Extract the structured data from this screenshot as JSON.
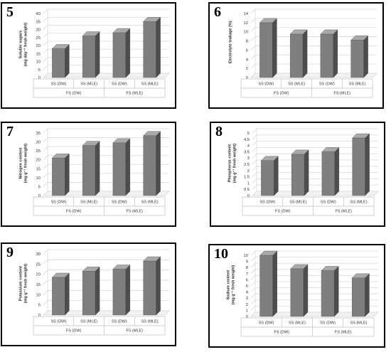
{
  "chart_data": [
    {
      "panel": "5",
      "type": "bar",
      "ylabel_lines": [
        "Soluble sugars",
        "(mg day⁻¹ fresh weight)"
      ],
      "yticks": [
        0,
        5,
        10,
        15,
        20,
        25,
        30,
        35,
        40
      ],
      "ylim": [
        0,
        40
      ],
      "categories": [
        "SS (DW)",
        "SS (MLE)",
        "SS (DW)",
        "SS (MLE)"
      ],
      "groups": [
        "FS (DW)",
        "FS (MLE)"
      ],
      "values": [
        18,
        26,
        28,
        35
      ]
    },
    {
      "panel": "6",
      "type": "bar",
      "ylabel_lines": [
        "Electrolyte leakage (%)"
      ],
      "yticks": [
        0,
        2,
        4,
        6,
        8,
        10,
        12,
        14
      ],
      "ylim": [
        0,
        14
      ],
      "categories": [
        "SS (DW)",
        "SS (MLE)",
        "SS (DW)",
        "SS (MLE)"
      ],
      "groups": [
        "FS (DW)",
        "FS (MLE)"
      ],
      "values": [
        12,
        9.5,
        9.5,
        8.2
      ]
    },
    {
      "panel": "7",
      "type": "bar",
      "ylabel_lines": [
        "Nitrogen content",
        "(mg g⁻¹ fresh weight)"
      ],
      "yticks": [
        0,
        5,
        10,
        15,
        20,
        25,
        30,
        35
      ],
      "ylim": [
        0,
        35
      ],
      "categories": [
        "SS (DW)",
        "SS (MLE)",
        "SS (DW)",
        "SS (MLE)"
      ],
      "groups": [
        "FS (DW)",
        "FS (MLE)"
      ],
      "values": [
        21,
        28,
        29.5,
        33.5
      ]
    },
    {
      "panel": "8",
      "type": "bar",
      "ylabel_lines": [
        "Phosphorus content",
        "(mg g⁻¹ fresh weight)"
      ],
      "yticks": [
        0,
        0.5,
        1,
        1.5,
        2,
        2.5,
        3,
        3.5,
        4,
        4.5,
        5
      ],
      "ylim": [
        0,
        5
      ],
      "categories": [
        "SS (DW)",
        "SS (MLE)",
        "SS (DW)",
        "SS (MLE)"
      ],
      "groups": [
        "FS (DW)",
        "FS (MLE)"
      ],
      "values": [
        2.8,
        3.3,
        3.5,
        4.6
      ]
    },
    {
      "panel": "9",
      "type": "bar",
      "ylabel_lines": [
        "Potassium content",
        "(mg g⁻¹ fresh weight)"
      ],
      "yticks": [
        0,
        5,
        10,
        15,
        20,
        25,
        30
      ],
      "ylim": [
        0,
        30
      ],
      "categories": [
        "SS (DW)",
        "SS (MLE)",
        "SS (DW)",
        "SS (MLE)"
      ],
      "groups": [
        "FS (DW)",
        "FS (MLE)"
      ],
      "values": [
        18.5,
        21.5,
        22.5,
        26.5
      ]
    },
    {
      "panel": "10",
      "type": "bar",
      "ylabel_lines": [
        "Sodium content",
        "(mg g⁻¹ fresh weight)"
      ],
      "yticks": [
        0,
        1,
        2,
        3,
        4,
        5,
        6,
        7,
        8,
        9,
        10
      ],
      "ylim": [
        0,
        10
      ],
      "categories": [
        "SS (DW)",
        "SS (MLE)",
        "SS (DW)",
        "SS (MLE)"
      ],
      "groups": [
        "FS (DW)",
        "FS (MLE)"
      ],
      "values": [
        10,
        7.8,
        7.5,
        6.3
      ]
    }
  ],
  "colors": {
    "bar_front": "#7f7f7f",
    "bar_side": "#4d4d4d",
    "bar_top": "#a9a9a9",
    "grid": "#d9d9d9",
    "axis_text": "#333333"
  }
}
